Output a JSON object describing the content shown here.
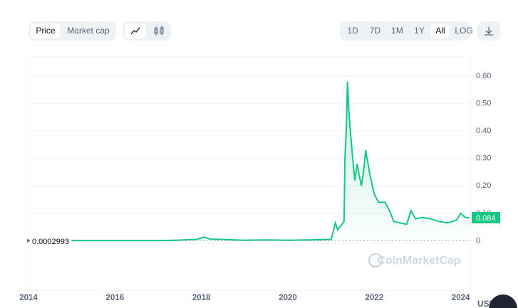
{
  "controls": {
    "price": "Price",
    "market_cap": "Market cap",
    "ranges": [
      "1D",
      "7D",
      "1M",
      "1Y",
      "All"
    ],
    "log": "LOG",
    "currency": "USD",
    "watermark": "CoinMarketCap"
  },
  "chart_data": {
    "type": "line",
    "x": [
      2015.0,
      2016.0,
      2017.0,
      2017.4,
      2017.9,
      2018.05,
      2018.2,
      2018.6,
      2019.0,
      2019.5,
      2020.0,
      2020.5,
      2021.0,
      2021.1,
      2021.15,
      2021.3,
      2021.32,
      2021.35,
      2021.38,
      2021.42,
      2021.5,
      2021.55,
      2021.6,
      2021.7,
      2021.75,
      2021.8,
      2021.9,
      2022.0,
      2022.1,
      2022.25,
      2022.35,
      2022.45,
      2022.6,
      2022.75,
      2022.85,
      2022.95,
      2023.1,
      2023.3,
      2023.5,
      2023.7,
      2023.9,
      2024.0,
      2024.1,
      2024.2
    ],
    "series": [
      {
        "name": "Price",
        "color": "#16c784",
        "values": [
          0.0002993,
          0.0003,
          0.0003,
          0.002,
          0.005,
          0.013,
          0.006,
          0.004,
          0.002,
          0.003,
          0.002,
          0.003,
          0.005,
          0.065,
          0.04,
          0.07,
          0.3,
          0.4,
          0.58,
          0.45,
          0.3,
          0.22,
          0.28,
          0.2,
          0.25,
          0.33,
          0.24,
          0.17,
          0.14,
          0.14,
          0.11,
          0.07,
          0.065,
          0.06,
          0.11,
          0.08,
          0.085,
          0.08,
          0.07,
          0.065,
          0.075,
          0.1,
          0.085,
          0.084
        ]
      }
    ],
    "start_price": 0.0002993,
    "current_price": 0.084,
    "xlim": [
      2014,
      2024.22
    ],
    "xticks": [
      2014,
      2016,
      2018,
      2020,
      2022,
      2024
    ],
    "ylim": [
      -0.03,
      0.67
    ],
    "yticks": [
      0,
      {
        "value": 0.1,
        "label": "0.10"
      },
      {
        "value": 0.2,
        "label": "0.20"
      },
      {
        "value": 0.3,
        "label": "0.30"
      },
      {
        "value": 0.4,
        "label": "0.40"
      },
      {
        "value": 0.5,
        "label": "0.50"
      },
      {
        "value": 0.6,
        "label": "0.60"
      }
    ],
    "grid": true
  }
}
